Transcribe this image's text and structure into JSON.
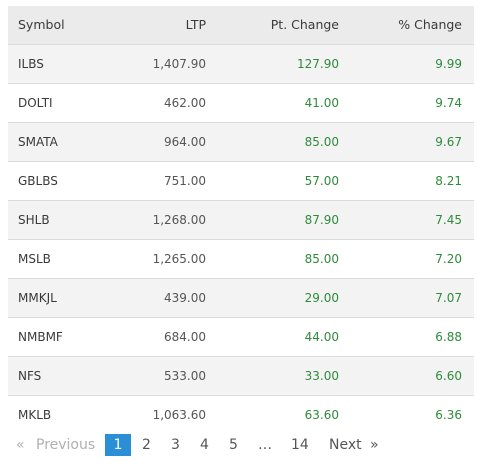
{
  "table": {
    "headers": {
      "symbol": "Symbol",
      "ltp": "LTP",
      "pt_change": "Pt. Change",
      "pct_change": "% Change"
    },
    "rows": [
      {
        "symbol": "ILBS",
        "ltp": "1,407.90",
        "pt_change": "127.90",
        "pct_change": "9.99"
      },
      {
        "symbol": "DOLTI",
        "ltp": "462.00",
        "pt_change": "41.00",
        "pct_change": "9.74"
      },
      {
        "symbol": "SMATA",
        "ltp": "964.00",
        "pt_change": "85.00",
        "pct_change": "9.67"
      },
      {
        "symbol": "GBLBS",
        "ltp": "751.00",
        "pt_change": "57.00",
        "pct_change": "8.21"
      },
      {
        "symbol": "SHLB",
        "ltp": "1,268.00",
        "pt_change": "87.90",
        "pct_change": "7.45"
      },
      {
        "symbol": "MSLB",
        "ltp": "1,265.00",
        "pt_change": "85.00",
        "pct_change": "7.20"
      },
      {
        "symbol": "MMKJL",
        "ltp": "439.00",
        "pt_change": "29.00",
        "pct_change": "7.07"
      },
      {
        "symbol": "NMBMF",
        "ltp": "684.00",
        "pt_change": "44.00",
        "pct_change": "6.88"
      },
      {
        "symbol": "NFS",
        "ltp": "533.00",
        "pt_change": "33.00",
        "pct_change": "6.60"
      },
      {
        "symbol": "MKLB",
        "ltp": "1,063.60",
        "pt_change": "63.60",
        "pct_change": "6.36"
      }
    ]
  },
  "pagination": {
    "prev_arrow": "«",
    "prev_label": "Previous",
    "pages": [
      "1",
      "2",
      "3",
      "4",
      "5",
      "…",
      "14"
    ],
    "current_page": "1",
    "next_label": "Next",
    "next_arrow": "»"
  },
  "colors": {
    "gain": "#2e8b3a",
    "active_page": "#2a8fd6",
    "header_bg": "#ebebeb"
  }
}
